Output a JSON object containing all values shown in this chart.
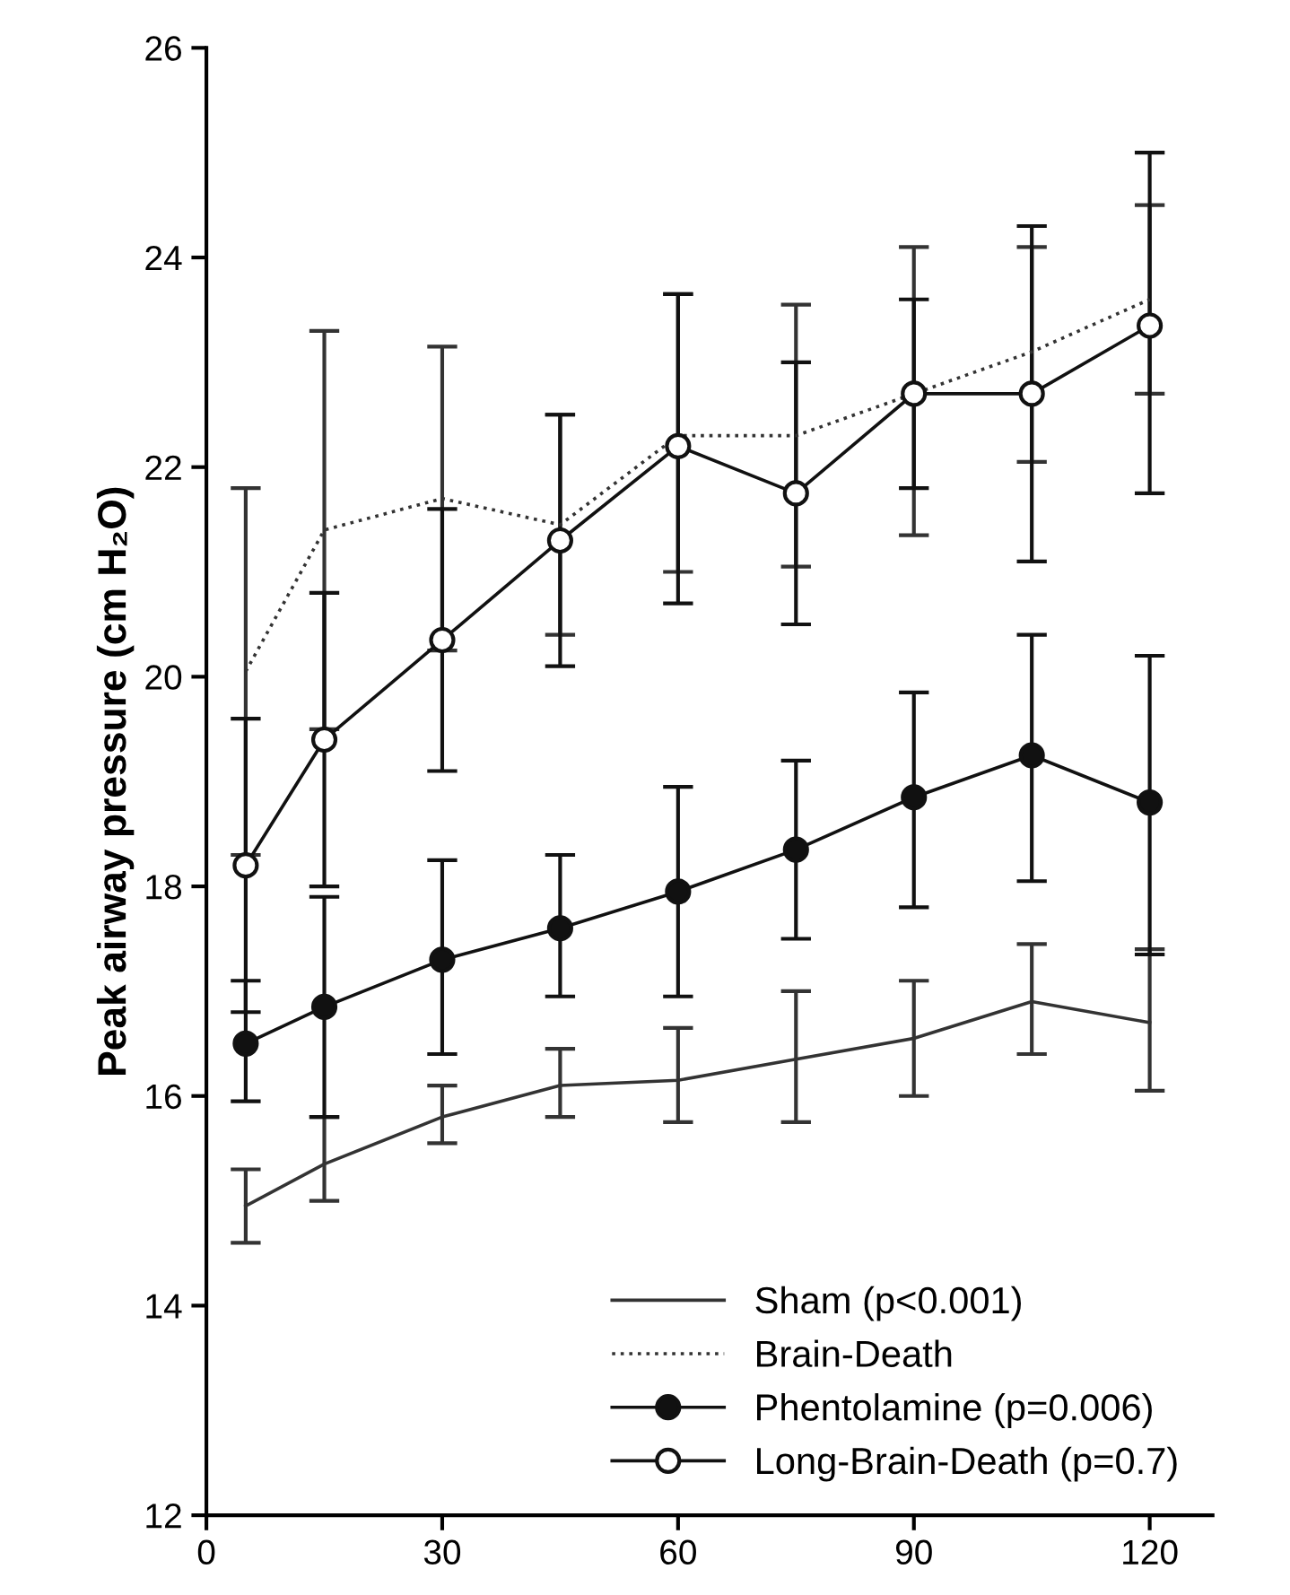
{
  "chart_data": {
    "type": "line",
    "ylabel": "Peak airway pressure (cm H₂O)",
    "x": [
      5,
      15,
      30,
      45,
      60,
      75,
      90,
      105,
      120
    ],
    "xlim": [
      0,
      128
    ],
    "xticks": [
      0,
      30,
      60,
      90,
      120
    ],
    "ylim": [
      12,
      26
    ],
    "yticks": [
      12,
      14,
      16,
      18,
      20,
      22,
      24,
      26
    ],
    "grid": false,
    "legend": "bottom right",
    "series": [
      {
        "name": "Sham (p<0.001)",
        "color": "#333333",
        "marker": "none",
        "line_style": "solid",
        "values": [
          14.95,
          15.35,
          15.8,
          16.1,
          16.15,
          16.35,
          16.55,
          16.9,
          16.7
        ],
        "errors": [
          [
            14.6,
            15.3
          ],
          [
            15.0,
            15.8
          ],
          [
            15.55,
            16.1
          ],
          [
            15.8,
            16.45
          ],
          [
            15.75,
            16.65
          ],
          [
            15.75,
            17.0
          ],
          [
            16.0,
            17.1
          ],
          [
            16.4,
            17.45
          ],
          [
            16.05,
            17.4
          ]
        ]
      },
      {
        "name": "Brain-Death",
        "color": "#333333",
        "marker": "none",
        "line_style": "dotted",
        "values": [
          20.05,
          21.4,
          21.7,
          21.45,
          22.3,
          22.3,
          22.7,
          23.1,
          23.6
        ],
        "errors": [
          [
            18.3,
            21.8
          ],
          [
            19.5,
            23.3
          ],
          [
            20.25,
            23.15
          ],
          [
            20.4,
            22.5
          ],
          [
            21.0,
            23.65
          ],
          [
            21.05,
            23.55
          ],
          [
            21.35,
            24.1
          ],
          [
            22.05,
            24.1
          ],
          [
            22.7,
            24.5
          ]
        ]
      },
      {
        "name": "Phentolamine (p=0.006)",
        "color": "#111111",
        "marker": "circle",
        "line_style": "solid",
        "values": [
          16.5,
          16.85,
          17.3,
          17.6,
          17.95,
          18.35,
          18.85,
          19.25,
          18.8
        ],
        "errors": [
          [
            15.95,
            17.1
          ],
          [
            15.8,
            17.9
          ],
          [
            16.4,
            18.25
          ],
          [
            16.95,
            18.3
          ],
          [
            16.95,
            18.95
          ],
          [
            17.5,
            19.2
          ],
          [
            17.8,
            19.85
          ],
          [
            18.05,
            20.4
          ],
          [
            17.35,
            20.2
          ]
        ]
      },
      {
        "name": "Long-Brain-Death (p=0.7)",
        "color": "#111111",
        "marker": "circle",
        "line_style": "solid",
        "values": [
          18.2,
          19.4,
          20.35,
          21.3,
          22.2,
          21.75,
          22.7,
          22.7,
          23.35
        ],
        "errors": [
          [
            16.8,
            19.6
          ],
          [
            18.0,
            20.8
          ],
          [
            19.1,
            21.6
          ],
          [
            20.1,
            22.5
          ],
          [
            20.7,
            23.65
          ],
          [
            20.5,
            23.0
          ],
          [
            21.8,
            23.6
          ],
          [
            21.1,
            24.3
          ],
          [
            21.75,
            25.0
          ]
        ]
      }
    ]
  }
}
